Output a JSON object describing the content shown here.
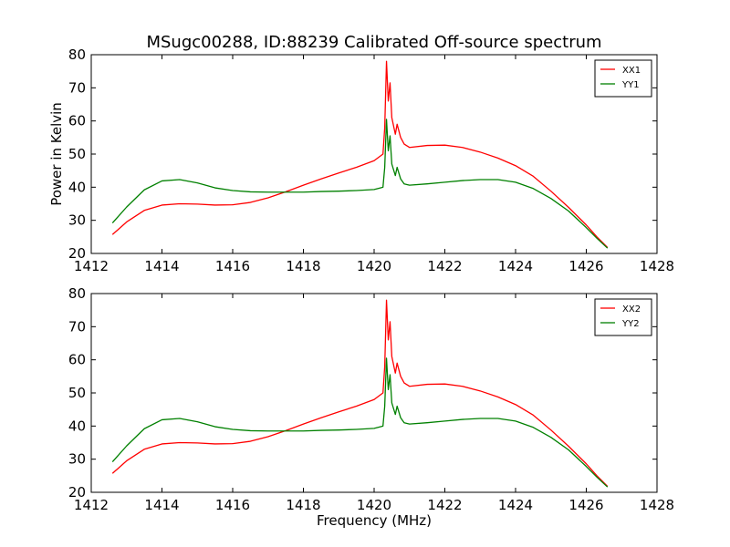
{
  "chart_data": {
    "type": "line",
    "title": "MSugc00288, ID:88239 Calibrated Off-source spectrum",
    "xlabel": "Frequency (MHz)",
    "ylabel": "Power in Kelvin",
    "xlim": [
      1412,
      1428
    ],
    "ylim": [
      20,
      80
    ],
    "xticks": [
      "1412",
      "1414",
      "1416",
      "1418",
      "1420",
      "1422",
      "1424",
      "1426",
      "1428"
    ],
    "yticks": [
      "20",
      "30",
      "40",
      "50",
      "60",
      "70",
      "80"
    ],
    "grid": false,
    "legend_position": "top-right",
    "colors": {
      "red": "#ff0000",
      "green": "#008000"
    },
    "panels": [
      {
        "series": [
          {
            "name": "XX1",
            "color": "#ff0000",
            "points": [
              [
                1412.6,
                25.7
              ],
              [
                1413.0,
                29.5
              ],
              [
                1413.5,
                33.0
              ],
              [
                1414.0,
                34.6
              ],
              [
                1414.5,
                35.0
              ],
              [
                1415.0,
                34.9
              ],
              [
                1415.5,
                34.6
              ],
              [
                1416.0,
                34.7
              ],
              [
                1416.5,
                35.4
              ],
              [
                1417.0,
                36.8
              ],
              [
                1417.5,
                38.6
              ],
              [
                1418.0,
                40.6
              ],
              [
                1418.5,
                42.5
              ],
              [
                1419.0,
                44.3
              ],
              [
                1419.5,
                46.0
              ],
              [
                1420.0,
                48.0
              ],
              [
                1420.25,
                50.0
              ],
              [
                1420.3,
                58.0
              ],
              [
                1420.35,
                78.0
              ],
              [
                1420.4,
                66.0
              ],
              [
                1420.45,
                71.5
              ],
              [
                1420.5,
                61.0
              ],
              [
                1420.6,
                56.0
              ],
              [
                1420.65,
                59.0
              ],
              [
                1420.75,
                55.0
              ],
              [
                1420.85,
                53.0
              ],
              [
                1421.0,
                52.0
              ],
              [
                1421.5,
                52.6
              ],
              [
                1422.0,
                52.7
              ],
              [
                1422.5,
                52.0
              ],
              [
                1423.0,
                50.6
              ],
              [
                1423.5,
                48.8
              ],
              [
                1424.0,
                46.5
              ],
              [
                1424.5,
                43.3
              ],
              [
                1425.0,
                38.8
              ],
              [
                1425.5,
                33.9
              ],
              [
                1426.0,
                28.6
              ],
              [
                1426.3,
                25.0
              ],
              [
                1426.6,
                21.8
              ]
            ]
          },
          {
            "name": "YY1",
            "color": "#008000",
            "points": [
              [
                1412.6,
                29.2
              ],
              [
                1413.0,
                34.0
              ],
              [
                1413.5,
                39.2
              ],
              [
                1414.0,
                41.9
              ],
              [
                1414.5,
                42.3
              ],
              [
                1415.0,
                41.3
              ],
              [
                1415.5,
                39.8
              ],
              [
                1416.0,
                39.0
              ],
              [
                1416.5,
                38.6
              ],
              [
                1417.0,
                38.5
              ],
              [
                1417.5,
                38.5
              ],
              [
                1418.0,
                38.5
              ],
              [
                1418.5,
                38.7
              ],
              [
                1419.0,
                38.8
              ],
              [
                1419.5,
                39.0
              ],
              [
                1420.0,
                39.3
              ],
              [
                1420.25,
                40.0
              ],
              [
                1420.3,
                46.0
              ],
              [
                1420.35,
                60.5
              ],
              [
                1420.4,
                51.0
              ],
              [
                1420.45,
                55.5
              ],
              [
                1420.5,
                47.0
              ],
              [
                1420.6,
                43.5
              ],
              [
                1420.65,
                46.0
              ],
              [
                1420.75,
                42.5
              ],
              [
                1420.85,
                41.0
              ],
              [
                1421.0,
                40.6
              ],
              [
                1421.5,
                41.0
              ],
              [
                1422.0,
                41.5
              ],
              [
                1422.5,
                42.0
              ],
              [
                1423.0,
                42.3
              ],
              [
                1423.5,
                42.3
              ],
              [
                1424.0,
                41.5
              ],
              [
                1424.5,
                39.6
              ],
              [
                1425.0,
                36.6
              ],
              [
                1425.5,
                32.8
              ],
              [
                1426.0,
                27.8
              ],
              [
                1426.3,
                24.6
              ],
              [
                1426.6,
                21.6
              ]
            ]
          }
        ]
      },
      {
        "series": [
          {
            "name": "XX2",
            "color": "#ff0000",
            "points": [
              [
                1412.6,
                25.7
              ],
              [
                1413.0,
                29.5
              ],
              [
                1413.5,
                33.0
              ],
              [
                1414.0,
                34.6
              ],
              [
                1414.5,
                35.0
              ],
              [
                1415.0,
                34.9
              ],
              [
                1415.5,
                34.6
              ],
              [
                1416.0,
                34.7
              ],
              [
                1416.5,
                35.4
              ],
              [
                1417.0,
                36.8
              ],
              [
                1417.5,
                38.6
              ],
              [
                1418.0,
                40.6
              ],
              [
                1418.5,
                42.5
              ],
              [
                1419.0,
                44.3
              ],
              [
                1419.5,
                46.0
              ],
              [
                1420.0,
                48.0
              ],
              [
                1420.25,
                50.0
              ],
              [
                1420.3,
                58.0
              ],
              [
                1420.35,
                78.0
              ],
              [
                1420.4,
                66.0
              ],
              [
                1420.45,
                71.5
              ],
              [
                1420.5,
                61.0
              ],
              [
                1420.6,
                56.0
              ],
              [
                1420.65,
                59.0
              ],
              [
                1420.75,
                55.0
              ],
              [
                1420.85,
                53.0
              ],
              [
                1421.0,
                52.0
              ],
              [
                1421.5,
                52.6
              ],
              [
                1422.0,
                52.7
              ],
              [
                1422.5,
                52.0
              ],
              [
                1423.0,
                50.6
              ],
              [
                1423.5,
                48.8
              ],
              [
                1424.0,
                46.5
              ],
              [
                1424.5,
                43.3
              ],
              [
                1425.0,
                38.8
              ],
              [
                1425.5,
                33.9
              ],
              [
                1426.0,
                28.6
              ],
              [
                1426.3,
                25.0
              ],
              [
                1426.6,
                21.8
              ]
            ]
          },
          {
            "name": "YY2",
            "color": "#008000",
            "points": [
              [
                1412.6,
                29.2
              ],
              [
                1413.0,
                34.0
              ],
              [
                1413.5,
                39.2
              ],
              [
                1414.0,
                41.9
              ],
              [
                1414.5,
                42.3
              ],
              [
                1415.0,
                41.3
              ],
              [
                1415.5,
                39.8
              ],
              [
                1416.0,
                39.0
              ],
              [
                1416.5,
                38.6
              ],
              [
                1417.0,
                38.5
              ],
              [
                1417.5,
                38.5
              ],
              [
                1418.0,
                38.5
              ],
              [
                1418.5,
                38.7
              ],
              [
                1419.0,
                38.8
              ],
              [
                1419.5,
                39.0
              ],
              [
                1420.0,
                39.3
              ],
              [
                1420.25,
                40.0
              ],
              [
                1420.3,
                46.0
              ],
              [
                1420.35,
                60.5
              ],
              [
                1420.4,
                51.0
              ],
              [
                1420.45,
                55.5
              ],
              [
                1420.5,
                47.0
              ],
              [
                1420.6,
                43.5
              ],
              [
                1420.65,
                46.0
              ],
              [
                1420.75,
                42.5
              ],
              [
                1420.85,
                41.0
              ],
              [
                1421.0,
                40.6
              ],
              [
                1421.5,
                41.0
              ],
              [
                1422.0,
                41.5
              ],
              [
                1422.5,
                42.0
              ],
              [
                1423.0,
                42.3
              ],
              [
                1423.5,
                42.3
              ],
              [
                1424.0,
                41.5
              ],
              [
                1424.5,
                39.6
              ],
              [
                1425.0,
                36.6
              ],
              [
                1425.5,
                32.8
              ],
              [
                1426.0,
                27.8
              ],
              [
                1426.3,
                24.6
              ],
              [
                1426.6,
                21.6
              ]
            ]
          }
        ]
      }
    ]
  }
}
